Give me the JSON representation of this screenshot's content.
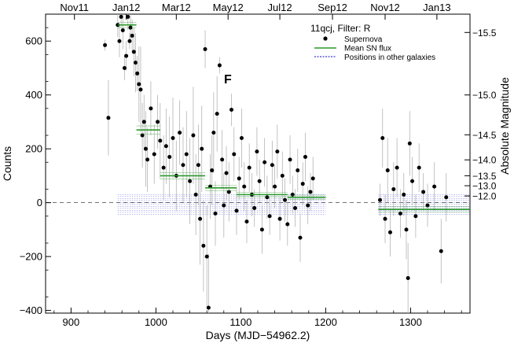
{
  "chart_data": {
    "type": "scatter",
    "title": "11qcj, Filter:  R",
    "xlabel": "Days (MJD−54962.2)",
    "ylabel": "Counts",
    "y2label": "Absolute Magnitude",
    "xlim": [
      870,
      1370
    ],
    "ylim": [
      -410,
      700
    ],
    "xticks": [
      "900",
      "1000",
      "1100",
      "1200",
      "1300"
    ],
    "xtick_values": [
      900,
      1000,
      1100,
      1200,
      1300
    ],
    "yticks": [
      "−400",
      "−200",
      "0",
      "200",
      "400",
      "600"
    ],
    "ytick_values": [
      -400,
      -200,
      0,
      200,
      400,
      600
    ],
    "top_axis": {
      "labels": [
        "Nov11",
        "Jan12",
        "Mar12",
        "May12",
        "Jul12",
        "Sep12",
        "Nov12",
        "Jan13"
      ],
      "days": [
        904,
        965,
        1024,
        1085,
        1146,
        1208,
        1270,
        1331
      ]
    },
    "right_axis": {
      "labels": [
        "−15.5",
        "−15.0",
        "−14.5",
        "−14.0",
        "−13.5",
        "−13.0",
        "−12.0"
      ],
      "counts": [
        632,
        400,
        252,
        159,
        100,
        63,
        25
      ]
    },
    "annotation": {
      "text": "F",
      "x": 1082,
      "y": 460
    },
    "legend": {
      "position": "top-right",
      "entries": [
        "Supernova",
        "Mean SN flux",
        "Positions in other galaxies"
      ]
    },
    "colors": {
      "points": "#000000",
      "errorbars": "#b4b4b4",
      "mean_flux": "#2c9a2c",
      "other_galaxies": "#3b3bd0"
    },
    "reference_line_y": 0,
    "series": [
      {
        "name": "Supernova",
        "points": [
          [
            940,
            585,
            20
          ],
          [
            944,
            315,
            140
          ],
          [
            955,
            660,
            45
          ],
          [
            957,
            600,
            60
          ],
          [
            959,
            690,
            40
          ],
          [
            961,
            640,
            70
          ],
          [
            963,
            500,
            45
          ],
          [
            965,
            545,
            55
          ],
          [
            967,
            690,
            50
          ],
          [
            969,
            600,
            30
          ],
          [
            970,
            650,
            45
          ],
          [
            972,
            620,
            60
          ],
          [
            974,
            560,
            90
          ],
          [
            976,
            520,
            110
          ],
          [
            978,
            480,
            65
          ],
          [
            980,
            440,
            140
          ],
          [
            982,
            420,
            160
          ],
          [
            984,
            250,
            120
          ],
          [
            986,
            300,
            100
          ],
          [
            988,
            200,
            140
          ],
          [
            990,
            160,
            120
          ],
          [
            994,
            350,
            100
          ],
          [
            998,
            180,
            110
          ],
          [
            1002,
            300,
            100
          ],
          [
            1005,
            230,
            140
          ],
          [
            1009,
            130,
            120
          ],
          [
            1012,
            210,
            140
          ],
          [
            1016,
            170,
            150
          ],
          [
            1020,
            240,
            150
          ],
          [
            1024,
            100,
            130
          ],
          [
            1028,
            260,
            120
          ],
          [
            1032,
            140,
            140
          ],
          [
            1036,
            180,
            160
          ],
          [
            1040,
            80,
            160
          ],
          [
            1044,
            250,
            180
          ],
          [
            1047,
            30,
            150
          ],
          [
            1050,
            140,
            150
          ],
          [
            1052,
            -60,
            170
          ],
          [
            1054,
            200,
            160
          ],
          [
            1056,
            -160,
            170
          ],
          [
            1058,
            570,
            70
          ],
          [
            1060,
            -200,
            190
          ],
          [
            1062,
            -390,
            200
          ],
          [
            1064,
            60,
            120
          ],
          [
            1066,
            120,
            130
          ],
          [
            1068,
            260,
            150
          ],
          [
            1070,
            -40,
            120
          ],
          [
            1072,
            330,
            140
          ],
          [
            1075,
            510,
            30
          ],
          [
            1078,
            160,
            110
          ],
          [
            1080,
            -10,
            120
          ],
          [
            1083,
            110,
            100
          ],
          [
            1086,
            40,
            110
          ],
          [
            1089,
            345,
            60
          ],
          [
            1092,
            180,
            100
          ],
          [
            1095,
            -30,
            90
          ],
          [
            1098,
            90,
            80
          ],
          [
            1101,
            240,
            110
          ],
          [
            1104,
            60,
            90
          ],
          [
            1107,
            -70,
            80
          ],
          [
            1110,
            130,
            90
          ],
          [
            1113,
            30,
            80
          ],
          [
            1116,
            -20,
            70
          ],
          [
            1119,
            190,
            90
          ],
          [
            1122,
            80,
            80
          ],
          [
            1125,
            -100,
            90
          ],
          [
            1128,
            150,
            90
          ],
          [
            1131,
            20,
            80
          ],
          [
            1134,
            -50,
            70
          ],
          [
            1137,
            140,
            90
          ],
          [
            1140,
            60,
            80
          ],
          [
            1143,
            190,
            100
          ],
          [
            1146,
            -60,
            80
          ],
          [
            1149,
            100,
            90
          ],
          [
            1152,
            10,
            80
          ],
          [
            1155,
            -80,
            80
          ],
          [
            1158,
            160,
            90
          ],
          [
            1161,
            30,
            70
          ],
          [
            1164,
            -20,
            70
          ],
          [
            1167,
            120,
            80
          ],
          [
            1170,
            -130,
            90
          ],
          [
            1173,
            70,
            80
          ],
          [
            1176,
            170,
            90
          ],
          [
            1179,
            -10,
            70
          ],
          [
            1182,
            40,
            70
          ],
          [
            1185,
            90,
            80
          ],
          [
            1264,
            10,
            60
          ],
          [
            1267,
            240,
            110
          ],
          [
            1270,
            -60,
            90
          ],
          [
            1273,
            120,
            120
          ],
          [
            1276,
            -110,
            90
          ],
          [
            1280,
            50,
            100
          ],
          [
            1284,
            130,
            110
          ],
          [
            1288,
            -40,
            90
          ],
          [
            1292,
            30,
            80
          ],
          [
            1295,
            -100,
            110
          ],
          [
            1297,
            -280,
            130
          ],
          [
            1299,
            220,
            120
          ],
          [
            1302,
            80,
            90
          ],
          [
            1306,
            -50,
            80
          ],
          [
            1310,
            130,
            90
          ],
          [
            1315,
            40,
            70
          ],
          [
            1320,
            -10,
            80
          ],
          [
            1328,
            60,
            90
          ],
          [
            1336,
            -180,
            120
          ],
          [
            1342,
            20,
            90
          ]
        ]
      },
      {
        "name": "Mean SN flux",
        "segments": [
          {
            "x": [
              955,
              977
            ],
            "y": 660,
            "err": 10
          },
          {
            "x": [
              977,
              1005
            ],
            "y": 270,
            "err": 15
          },
          {
            "x": [
              1005,
              1058
            ],
            "y": 100,
            "err": 12
          },
          {
            "x": [
              1058,
              1095
            ],
            "y": 55,
            "err": 10
          },
          {
            "x": [
              1095,
              1155
            ],
            "y": 30,
            "err": 8
          },
          {
            "x": [
              1155,
              1200
            ],
            "y": 20,
            "err": 8
          },
          {
            "x": [
              1262,
              1370
            ],
            "y": -25,
            "err": 10
          }
        ]
      },
      {
        "name": "Positions in other galaxies",
        "bands": [
          {
            "x": [
              955,
              1200
            ],
            "y": [
              -45,
              30
            ]
          },
          {
            "x": [
              1262,
              1370
            ],
            "y": [
              -50,
              30
            ]
          }
        ]
      }
    ]
  }
}
